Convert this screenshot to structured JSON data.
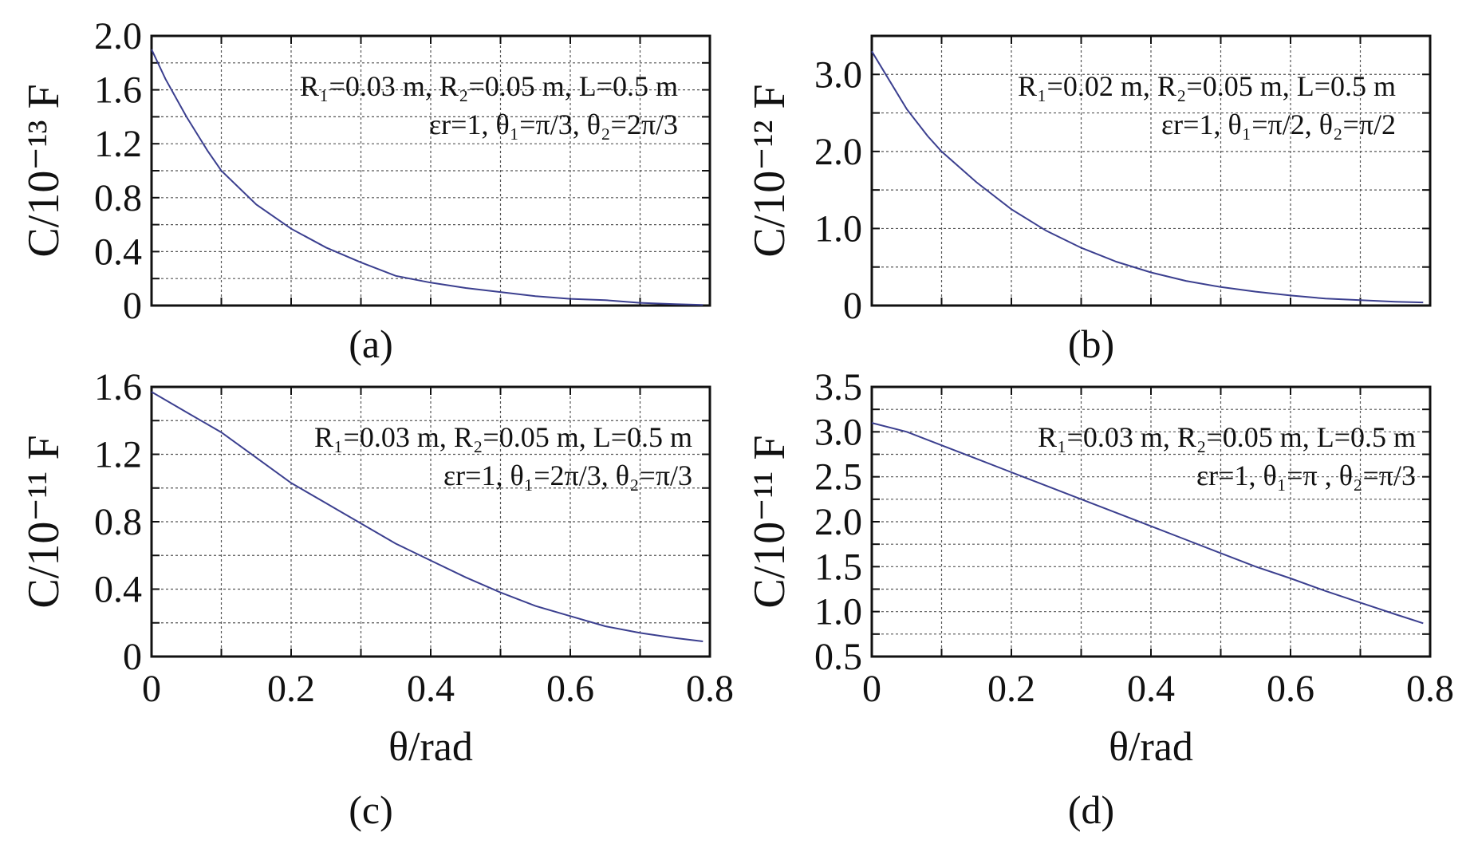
{
  "chart_data": [
    {
      "type": "line",
      "caption": "(a)",
      "ylabel": "C/10⁻¹³ F",
      "xlabel": "",
      "xlim": [
        0,
        0.8
      ],
      "ylim": [
        0,
        2.0
      ],
      "yticks": [
        "0",
        "0.4",
        "0.8",
        "1.2",
        "1.6",
        "2.0"
      ],
      "xticks": [],
      "annotation": [
        "R₁=0.03 m, R₂=0.05 m, L=0.5 m",
        "εr=1, θ₁=π/3, θ₂=2π/3"
      ],
      "x": [
        0,
        0.02,
        0.05,
        0.08,
        0.1,
        0.15,
        0.2,
        0.25,
        0.3,
        0.35,
        0.4,
        0.45,
        0.5,
        0.55,
        0.6,
        0.65,
        0.7,
        0.75,
        0.79
      ],
      "y": [
        1.9,
        1.68,
        1.4,
        1.15,
        1.0,
        0.75,
        0.57,
        0.43,
        0.32,
        0.22,
        0.17,
        0.13,
        0.1,
        0.07,
        0.05,
        0.04,
        0.02,
        0.01,
        0.005
      ]
    },
    {
      "type": "line",
      "caption": "(b)",
      "ylabel": "C/10⁻¹² F",
      "xlabel": "",
      "xlim": [
        0,
        0.8
      ],
      "ylim": [
        0,
        3.5
      ],
      "yticks": [
        "0",
        "1.0",
        "2.0",
        "3.0"
      ],
      "xticks": [],
      "annotation": [
        "R₁=0.02 m, R₂=0.05 m, L=0.5 m",
        "εr=1, θ₁=π/2, θ₂=π/2"
      ],
      "x": [
        0,
        0.02,
        0.05,
        0.08,
        0.1,
        0.15,
        0.2,
        0.25,
        0.3,
        0.35,
        0.4,
        0.45,
        0.5,
        0.55,
        0.6,
        0.65,
        0.7,
        0.75,
        0.79
      ],
      "y": [
        3.3,
        3.0,
        2.55,
        2.2,
        2.0,
        1.6,
        1.25,
        0.97,
        0.75,
        0.57,
        0.43,
        0.32,
        0.24,
        0.18,
        0.13,
        0.09,
        0.07,
        0.05,
        0.04
      ]
    },
    {
      "type": "line",
      "caption": "(c)",
      "ylabel": "C/10⁻¹¹ F",
      "xlabel": "θ/rad",
      "xlim": [
        0,
        0.8
      ],
      "ylim": [
        0,
        1.6
      ],
      "yticks": [
        "0",
        "0.4",
        "0.8",
        "1.2",
        "1.6"
      ],
      "xticks": [
        "0",
        "0.2",
        "0.4",
        "0.6",
        "0.8"
      ],
      "annotation": [
        "R₁=0.03 m, R₂=0.05 m, L=0.5 m",
        "εr=1, θ₁=2π/3, θ₂=π/3"
      ],
      "x": [
        0,
        0.05,
        0.1,
        0.15,
        0.2,
        0.25,
        0.3,
        0.35,
        0.4,
        0.45,
        0.5,
        0.55,
        0.6,
        0.65,
        0.7,
        0.75,
        0.79
      ],
      "y": [
        1.57,
        1.45,
        1.33,
        1.18,
        1.03,
        0.91,
        0.79,
        0.67,
        0.57,
        0.47,
        0.38,
        0.3,
        0.24,
        0.18,
        0.14,
        0.11,
        0.09
      ]
    },
    {
      "type": "line",
      "caption": "(d)",
      "ylabel": "C/10⁻¹¹ F",
      "xlabel": "θ/rad",
      "xlim": [
        0,
        0.8
      ],
      "ylim": [
        0.5,
        3.5
      ],
      "yticks": [
        "0.5",
        "1.0",
        "1.5",
        "2.0",
        "2.5",
        "3.0",
        "3.5"
      ],
      "xticks": [
        "0",
        "0.2",
        "0.4",
        "0.6",
        "0.8"
      ],
      "annotation": [
        "R₁=0.03 m, R₂=0.05 m, L=0.5 m",
        "εr=1, θ₁=π , θ₂=π/3"
      ],
      "x": [
        0,
        0.05,
        0.1,
        0.15,
        0.2,
        0.25,
        0.3,
        0.35,
        0.4,
        0.45,
        0.5,
        0.55,
        0.6,
        0.65,
        0.7,
        0.75,
        0.79
      ],
      "y": [
        3.1,
        3.0,
        2.85,
        2.7,
        2.55,
        2.4,
        2.25,
        2.1,
        1.95,
        1.8,
        1.65,
        1.5,
        1.37,
        1.23,
        1.1,
        0.97,
        0.87
      ]
    }
  ]
}
